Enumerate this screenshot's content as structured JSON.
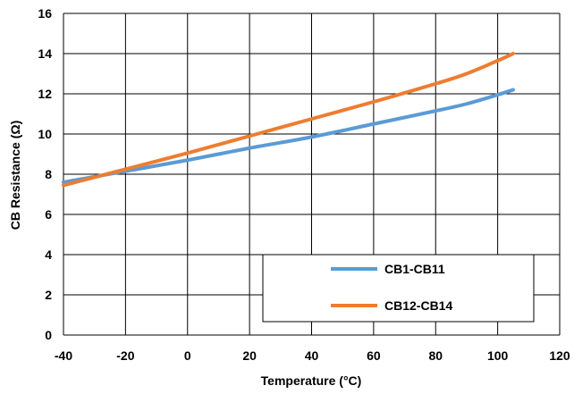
{
  "chart_data": {
    "type": "line",
    "title": "",
    "xlabel": "Temperature (°C)",
    "ylabel": "CB Resistance (Ω)",
    "xlim": [
      -40,
      120
    ],
    "ylim": [
      0,
      16
    ],
    "xticks": [
      -40,
      -20,
      0,
      20,
      40,
      60,
      80,
      100,
      120
    ],
    "yticks": [
      0,
      2,
      4,
      6,
      8,
      10,
      12,
      14,
      16
    ],
    "grid": true,
    "legend_position": "bottom-right",
    "series": [
      {
        "name": "CB1-CB11",
        "color": "#5b9bd5",
        "x": [
          -40,
          -20,
          0,
          20,
          40,
          60,
          80,
          90,
          100,
          105
        ],
        "y": [
          7.6,
          8.15,
          8.7,
          9.3,
          9.85,
          10.5,
          11.15,
          11.5,
          11.95,
          12.2
        ]
      },
      {
        "name": "CB12-CB14",
        "color": "#ed7d31",
        "x": [
          -40,
          -20,
          0,
          20,
          40,
          60,
          80,
          90,
          100,
          105
        ],
        "y": [
          7.45,
          8.25,
          9.05,
          9.9,
          10.75,
          11.6,
          12.5,
          13.0,
          13.65,
          14.0
        ]
      }
    ]
  }
}
